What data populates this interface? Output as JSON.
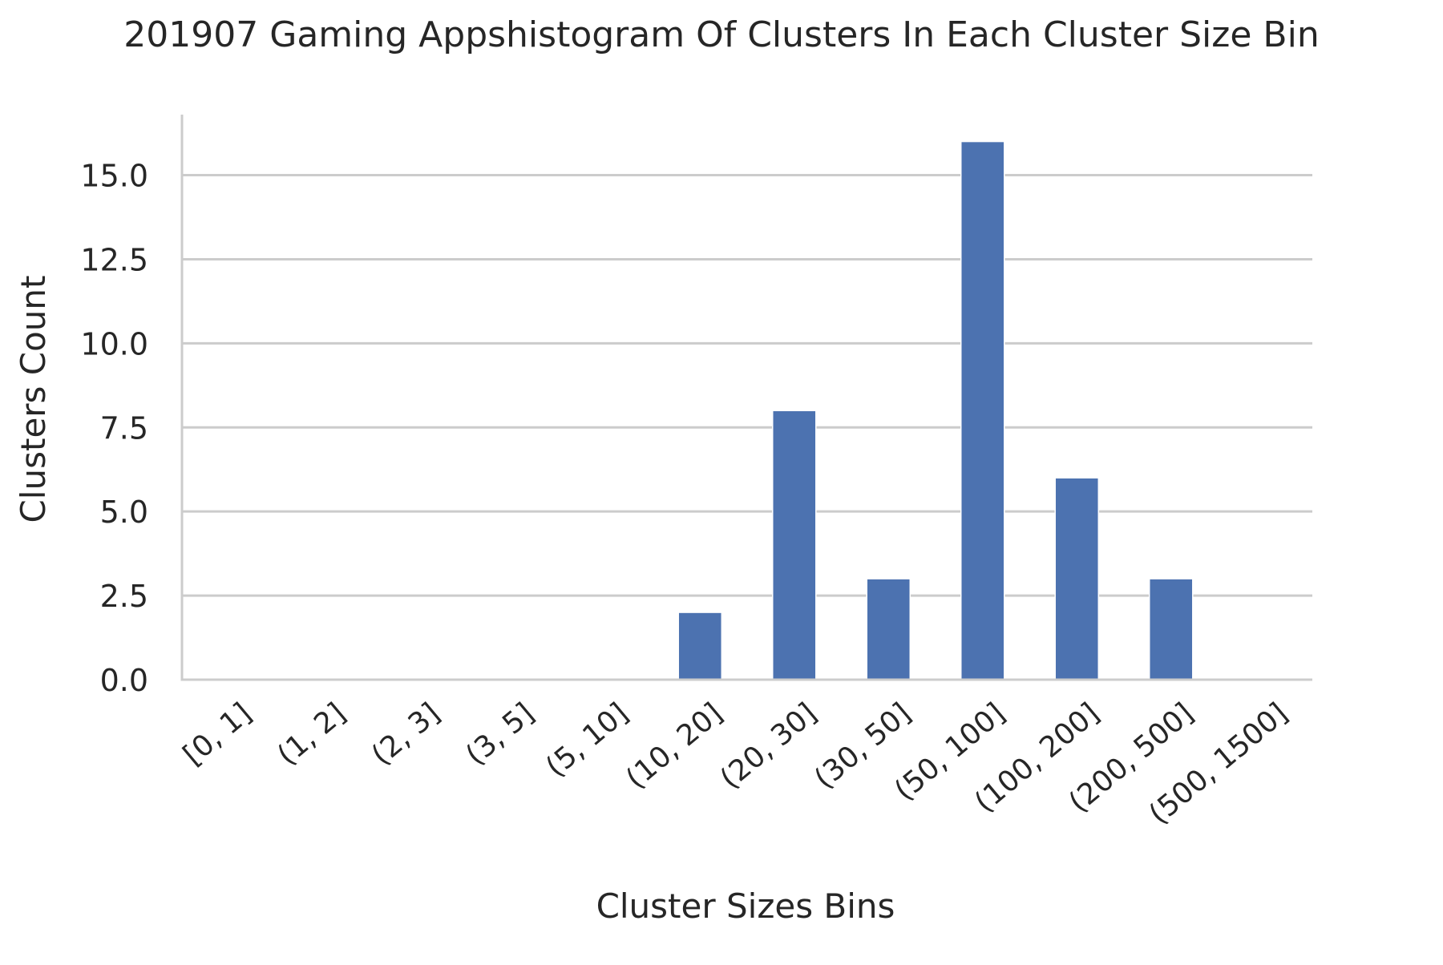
{
  "chart_data": {
    "type": "bar",
    "title": "201907 Gaming Appshistogram Of Clusters In Each Cluster Size Bin",
    "xlabel": "Cluster Sizes Bins",
    "ylabel": "Clusters Count",
    "categories": [
      "[0, 1]",
      "(1, 2]",
      "(2, 3]",
      "(3, 5]",
      "(5, 10]",
      "(10, 20]",
      "(20, 30]",
      "(30, 50]",
      "(50, 100]",
      "(100, 200]",
      "(200, 500]",
      "(500, 1500]"
    ],
    "values": [
      0,
      0,
      0,
      0,
      0,
      2,
      8,
      3,
      16,
      6,
      3,
      0
    ],
    "ylim": [
      0,
      16.8
    ],
    "yticks": [
      0,
      2.5,
      5,
      7.5,
      10,
      12.5,
      15
    ],
    "ytick_labels": [
      "0.0",
      "2.5",
      "5.0",
      "7.5",
      "10.0",
      "12.5",
      "15.0"
    ],
    "grid": "horizontal",
    "bar_color": "#4c72b0",
    "grid_color": "#cccccc",
    "axis_color": "#cccccc"
  }
}
